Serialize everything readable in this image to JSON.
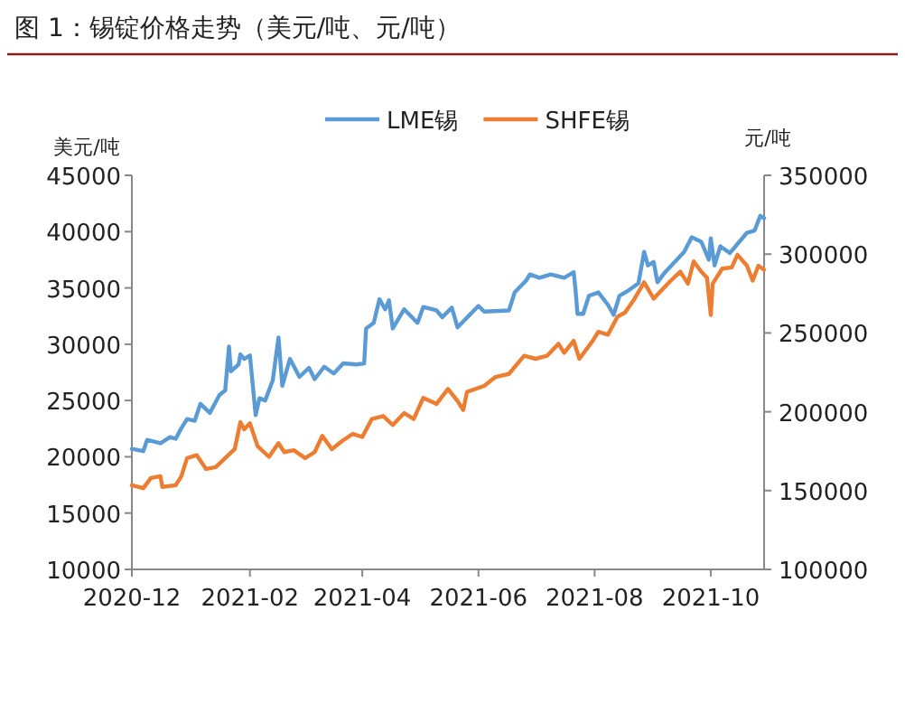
{
  "chart_data": {
    "type": "line",
    "title": "图 1：锡锭价格走势（美元/吨、元/吨）",
    "ylabel": "美元/吨",
    "y2label": "元/吨",
    "legend": "top",
    "xlim": [
      "2020-12-01",
      "2021-10-29"
    ],
    "xticks": [
      "2020-12",
      "2021-02",
      "2021-04",
      "2021-06",
      "2021-08",
      "2021-10"
    ],
    "ylim": [
      10000,
      45000
    ],
    "yticks": [
      10000,
      15000,
      20000,
      25000,
      30000,
      35000,
      40000,
      45000
    ],
    "y2lim": [
      100000,
      350000
    ],
    "y2ticks": [
      100000,
      150000,
      200000,
      250000,
      300000,
      350000
    ],
    "series": [
      {
        "name": "LME锡",
        "color": "#5b9bd5",
        "x": [
          "2020-12-01",
          "2020-12-07",
          "2020-12-09",
          "2020-12-16",
          "2020-12-21",
          "2020-12-24",
          "2020-12-27",
          "2020-12-30",
          "2021-01-03",
          "2021-01-06",
          "2021-01-11",
          "2021-01-16",
          "2021-01-19",
          "2021-01-21",
          "2021-01-22",
          "2021-01-26",
          "2021-01-27",
          "2021-01-29",
          "2021-02-01",
          "2021-02-04",
          "2021-02-06",
          "2021-02-09",
          "2021-02-13",
          "2021-02-16",
          "2021-02-18",
          "2021-02-22",
          "2021-02-27",
          "2021-03-04",
          "2021-03-07",
          "2021-03-12",
          "2021-03-17",
          "2021-03-22",
          "2021-03-29",
          "2021-04-02",
          "2021-04-03",
          "2021-04-07",
          "2021-04-10",
          "2021-04-13",
          "2021-04-15",
          "2021-04-17",
          "2021-04-23",
          "2021-04-30",
          "2021-05-03",
          "2021-05-10",
          "2021-05-13",
          "2021-05-18",
          "2021-05-21",
          "2021-06-01",
          "2021-06-04",
          "2021-06-17",
          "2021-06-20",
          "2021-06-26",
          "2021-06-28",
          "2021-07-03",
          "2021-07-09",
          "2021-07-16",
          "2021-07-21",
          "2021-07-22",
          "2021-07-23",
          "2021-07-26",
          "2021-07-29",
          "2021-08-03",
          "2021-08-08",
          "2021-08-11",
          "2021-08-14",
          "2021-08-19",
          "2021-08-24",
          "2021-08-27",
          "2021-08-29",
          "2021-09-01",
          "2021-09-03",
          "2021-09-07",
          "2021-09-12",
          "2021-09-17",
          "2021-09-21",
          "2021-09-26",
          "2021-09-30",
          "2021-10-01",
          "2021-10-03",
          "2021-10-06",
          "2021-10-11",
          "2021-10-15",
          "2021-10-20",
          "2021-10-24",
          "2021-10-27",
          "2021-10-29"
        ],
        "values": [
          20700,
          20500,
          21500,
          21200,
          21750,
          21600,
          22550,
          23350,
          23200,
          24700,
          23900,
          25500,
          25900,
          29800,
          27600,
          28200,
          29100,
          28700,
          29000,
          23700,
          25200,
          25000,
          26800,
          30600,
          26300,
          28700,
          27100,
          27900,
          26900,
          28000,
          27400,
          28300,
          28200,
          28300,
          31400,
          31900,
          34000,
          33100,
          33900,
          31400,
          33100,
          31900,
          33300,
          33000,
          32400,
          33250,
          31500,
          33400,
          32900,
          33000,
          34600,
          35650,
          36200,
          35900,
          36200,
          35900,
          36400,
          34800,
          32700,
          32700,
          34300,
          34600,
          33500,
          32600,
          34300,
          34800,
          35400,
          38200,
          37000,
          37300,
          35500,
          36400,
          37300,
          38200,
          39500,
          39100,
          37500,
          39400,
          37000,
          38700,
          38100,
          38900,
          39900,
          40100,
          41400,
          41200
        ]
      },
      {
        "name": "SHFE锡",
        "color": "#ed7d31",
        "axis": "y2",
        "x": [
          "2020-12-01",
          "2020-12-07",
          "2020-12-11",
          "2020-12-16",
          "2020-12-17",
          "2020-12-24",
          "2020-12-27",
          "2020-12-30",
          "2021-01-04",
          "2021-01-09",
          "2021-01-14",
          "2021-01-19",
          "2021-01-24",
          "2021-01-27",
          "2021-01-29",
          "2021-02-01",
          "2021-02-05",
          "2021-02-11",
          "2021-02-16",
          "2021-02-19",
          "2021-02-24",
          "2021-03-02",
          "2021-03-07",
          "2021-03-11",
          "2021-03-16",
          "2021-03-22",
          "2021-03-27",
          "2021-04-01",
          "2021-04-06",
          "2021-04-12",
          "2021-04-17",
          "2021-04-23",
          "2021-04-28",
          "2021-05-03",
          "2021-05-10",
          "2021-05-16",
          "2021-05-21",
          "2021-05-24",
          "2021-05-26",
          "2021-06-04",
          "2021-06-10",
          "2021-06-17",
          "2021-06-21",
          "2021-06-25",
          "2021-07-01",
          "2021-07-07",
          "2021-07-13",
          "2021-07-16",
          "2021-07-21",
          "2021-07-24",
          "2021-07-31",
          "2021-08-03",
          "2021-08-08",
          "2021-08-13",
          "2021-08-17",
          "2021-08-22",
          "2021-08-27",
          "2021-09-01",
          "2021-09-04",
          "2021-09-10",
          "2021-09-15",
          "2021-09-19",
          "2021-09-22",
          "2021-09-26",
          "2021-09-29",
          "2021-10-01",
          "2021-10-02",
          "2021-10-07",
          "2021-10-12",
          "2021-10-15",
          "2021-10-20",
          "2021-10-23",
          "2021-10-26",
          "2021-10-29"
        ],
        "values": [
          153400,
          151500,
          158000,
          159100,
          152300,
          153400,
          159100,
          170600,
          172500,
          163700,
          164900,
          170600,
          176300,
          193500,
          188900,
          192700,
          178200,
          171400,
          180100,
          174400,
          175600,
          170600,
          174400,
          184700,
          176300,
          182000,
          185900,
          184000,
          195400,
          197300,
          191600,
          199200,
          195400,
          208800,
          205000,
          214500,
          206900,
          201100,
          212600,
          216400,
          222100,
          224000,
          229800,
          235500,
          233600,
          235500,
          243100,
          237400,
          245000,
          233600,
          245000,
          250800,
          248900,
          260300,
          263000,
          271800,
          282100,
          271800,
          275600,
          283200,
          288900,
          281300,
          295400,
          288900,
          285100,
          261400,
          281300,
          290800,
          291600,
          299600,
          292700,
          283200,
          292700,
          290100
        ]
      }
    ]
  }
}
